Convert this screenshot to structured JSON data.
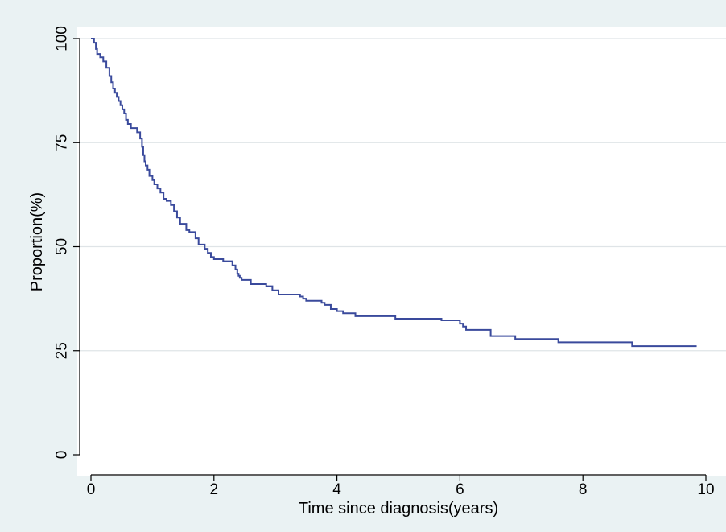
{
  "chart_data": {
    "type": "line",
    "step": true,
    "title": "",
    "xlabel": "Time since diagnosis(years)",
    "ylabel": "Proportion(%)",
    "xlim": [
      0,
      10
    ],
    "ylim": [
      0,
      100
    ],
    "xticks": [
      0,
      2,
      4,
      6,
      8,
      10
    ],
    "yticks": [
      0,
      25,
      50,
      75,
      100
    ],
    "grid": true,
    "legend": "none",
    "colors": {
      "line": "#3a4a9c",
      "grid": "#dfe4e7",
      "plot_bg": "#ffffff",
      "outer_bg": "#eaf2f3"
    },
    "series": [
      {
        "x": [
          0,
          0.05,
          0.08,
          0.1,
          0.15,
          0.2,
          0.25,
          0.3,
          0.33,
          0.36,
          0.39,
          0.42,
          0.45,
          0.48,
          0.51,
          0.54,
          0.57,
          0.6,
          0.65,
          0.75,
          0.8,
          0.83,
          0.85,
          0.87,
          0.89,
          0.92,
          0.95,
          1.0,
          1.03,
          1.08,
          1.13,
          1.18,
          1.23,
          1.3,
          1.35,
          1.4,
          1.45,
          1.55,
          1.6,
          1.7,
          1.75,
          1.85,
          1.9,
          1.95,
          2.0,
          2.15,
          2.3,
          2.35,
          2.38,
          2.4,
          2.42,
          2.45,
          2.6,
          2.85,
          2.95,
          3.05,
          3.4,
          3.45,
          3.5,
          3.75,
          3.8,
          3.9,
          4.0,
          4.1,
          4.3,
          4.95,
          5.7,
          6.0,
          6.05,
          6.1,
          6.5,
          6.9,
          7.6,
          8.8,
          9.85
        ],
        "y": [
          100,
          99,
          97.5,
          96.3,
          95.5,
          94.5,
          93,
          91,
          89.5,
          88,
          87,
          86,
          85,
          84,
          83,
          82,
          80.5,
          79.5,
          78.5,
          77.5,
          76,
          74,
          72,
          70.5,
          69.5,
          68.5,
          67,
          66,
          65,
          64,
          63,
          61.5,
          61,
          60,
          58.5,
          57,
          55.5,
          54,
          53.5,
          52,
          50.5,
          49.5,
          48.5,
          47.5,
          47,
          46.5,
          45.5,
          44.5,
          43.5,
          43,
          42.5,
          42,
          41,
          40.5,
          39.5,
          38.5,
          38,
          37.5,
          37,
          36.5,
          36,
          35,
          34.5,
          34,
          33.3,
          32.7,
          32.3,
          31.5,
          30.8,
          30,
          28.5,
          27.8,
          27,
          26.1,
          26.1
        ]
      }
    ]
  }
}
